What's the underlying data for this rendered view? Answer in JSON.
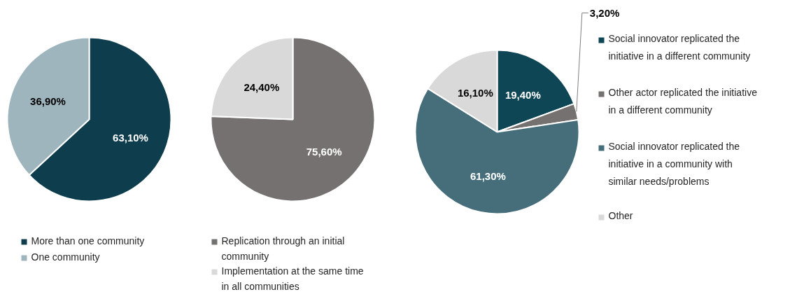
{
  "chart_data": [
    {
      "type": "pie",
      "categories": [
        "More than one community",
        "One community"
      ],
      "values": [
        63.1,
        36.9
      ],
      "colors": [
        "#0e3e4e",
        "#9fb5bd"
      ],
      "value_labels": [
        "63,10%",
        "36,90%"
      ],
      "legend": "bottom"
    },
    {
      "type": "pie",
      "categories": [
        "Replication through an initial community",
        "Implementation at the same time in all communities"
      ],
      "values": [
        75.6,
        24.4
      ],
      "colors": [
        "#767171",
        "#d9d9d9"
      ],
      "value_labels": [
        "75,60%",
        "24,40%"
      ],
      "legend": "bottom"
    },
    {
      "type": "pie",
      "categories": [
        "Social innovator replicated the initiative in a different community",
        "Other actor replicated the initiative in a different community",
        "Social innovator replicated the initiative in a community with similar needs/problems",
        "Other"
      ],
      "values": [
        19.4,
        3.2,
        61.3,
        16.1
      ],
      "colors": [
        "#0e4656",
        "#767171",
        "#466e7a",
        "#d9d9d9"
      ],
      "value_labels": [
        "19,40%",
        "3,20%",
        "61,30%",
        "16,10%"
      ],
      "legend": "right"
    }
  ]
}
